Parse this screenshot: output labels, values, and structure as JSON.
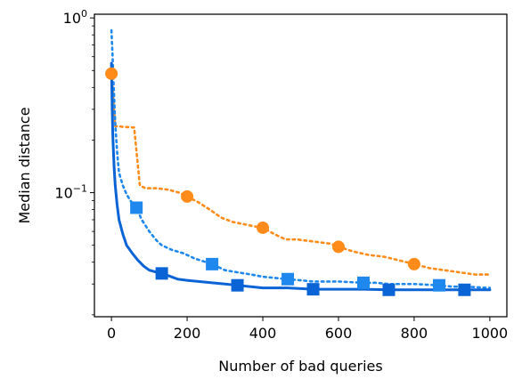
{
  "chart_data": {
    "type": "line",
    "title": "",
    "xlabel": "Number of bad queries",
    "ylabel": "Median distance",
    "xlim": [
      -45,
      1045
    ],
    "ylim": [
      0.0195,
      1.05
    ],
    "y_scale": "log",
    "x_ticks": [
      0,
      200,
      400,
      600,
      800,
      1000
    ],
    "x_tick_labels": [
      "0",
      "200",
      "400",
      "600",
      "800",
      "1000"
    ],
    "y_major_ticks": [
      0.1,
      1
    ],
    "y_major_tick_labels": [
      "10$^{-1}$",
      "10$^{0}$"
    ],
    "y_tick_text": {
      "major_base": "10",
      "exp_minus_1": "−1",
      "exp_0": "0"
    },
    "y_minor_ticks": [
      0.02,
      0.03,
      0.04,
      0.05,
      0.06,
      0.07,
      0.08,
      0.09,
      0.2,
      0.3,
      0.4,
      0.5,
      0.6,
      0.7,
      0.8,
      0.9
    ],
    "grid": false,
    "legend": "none",
    "series": [
      {
        "color": "#ff8c1a",
        "line_style": "dotted",
        "marker": "circle",
        "x": [
          0,
          10,
          20,
          30,
          45,
          60,
          75,
          90,
          120,
          150,
          180,
          200,
          230,
          260,
          290,
          320,
          350,
          380,
          400,
          430,
          460,
          490,
          520,
          550,
          580,
          600,
          640,
          680,
          720,
          760,
          800,
          840,
          880,
          920,
          960,
          1000
        ],
        "y": [
          0.48,
          0.24,
          0.24,
          0.238,
          0.237,
          0.236,
          0.11,
          0.106,
          0.106,
          0.104,
          0.1,
          0.095,
          0.088,
          0.08,
          0.072,
          0.068,
          0.066,
          0.064,
          0.063,
          0.058,
          0.054,
          0.054,
          0.053,
          0.052,
          0.051,
          0.049,
          0.046,
          0.044,
          0.043,
          0.041,
          0.039,
          0.037,
          0.036,
          0.035,
          0.034,
          0.034
        ],
        "marker_x": [
          0,
          200,
          400,
          600,
          800
        ],
        "marker_y": [
          0.48,
          0.095,
          0.063,
          0.049,
          0.039
        ]
      },
      {
        "color": "#1f88ee",
        "line_style": "dotted",
        "marker": "square",
        "x": [
          0,
          3,
          6,
          10,
          15,
          20,
          30,
          40,
          50,
          66,
          80,
          100,
          120,
          133,
          160,
          190,
          220,
          266,
          300,
          333,
          370,
          400,
          466,
          500,
          533,
          600,
          666,
          700,
          733,
          800,
          866,
          900,
          933,
          1000
        ],
        "y": [
          0.85,
          0.6,
          0.4,
          0.25,
          0.17,
          0.13,
          0.11,
          0.098,
          0.09,
          0.082,
          0.07,
          0.06,
          0.053,
          0.05,
          0.047,
          0.045,
          0.042,
          0.039,
          0.036,
          0.035,
          0.034,
          0.033,
          0.032,
          0.0315,
          0.031,
          0.031,
          0.0305,
          0.0305,
          0.03,
          0.03,
          0.0295,
          0.029,
          0.029,
          0.0285
        ],
        "marker_x": [
          66,
          266,
          466,
          666,
          866
        ],
        "marker_y": [
          0.082,
          0.039,
          0.032,
          0.0305,
          0.0295
        ]
      },
      {
        "color": "#0b64d6",
        "line_style": "solid",
        "marker": "square",
        "x": [
          0,
          2,
          4,
          7,
          10,
          15,
          20,
          30,
          40,
          55,
          70,
          85,
          100,
          120,
          133,
          150,
          175,
          200,
          233,
          266,
          300,
          333,
          400,
          466,
          533,
          600,
          666,
          733,
          800,
          866,
          933,
          1000
        ],
        "y": [
          0.55,
          0.3,
          0.2,
          0.14,
          0.11,
          0.085,
          0.07,
          0.058,
          0.05,
          0.045,
          0.041,
          0.038,
          0.036,
          0.035,
          0.0345,
          0.0335,
          0.032,
          0.0315,
          0.031,
          0.0305,
          0.03,
          0.0295,
          0.0285,
          0.0285,
          0.028,
          0.028,
          0.028,
          0.0278,
          0.0278,
          0.0278,
          0.0278,
          0.0278
        ],
        "marker_x": [
          133,
          333,
          533,
          733,
          933
        ],
        "marker_y": [
          0.0345,
          0.0295,
          0.028,
          0.0278,
          0.0278
        ]
      }
    ]
  }
}
